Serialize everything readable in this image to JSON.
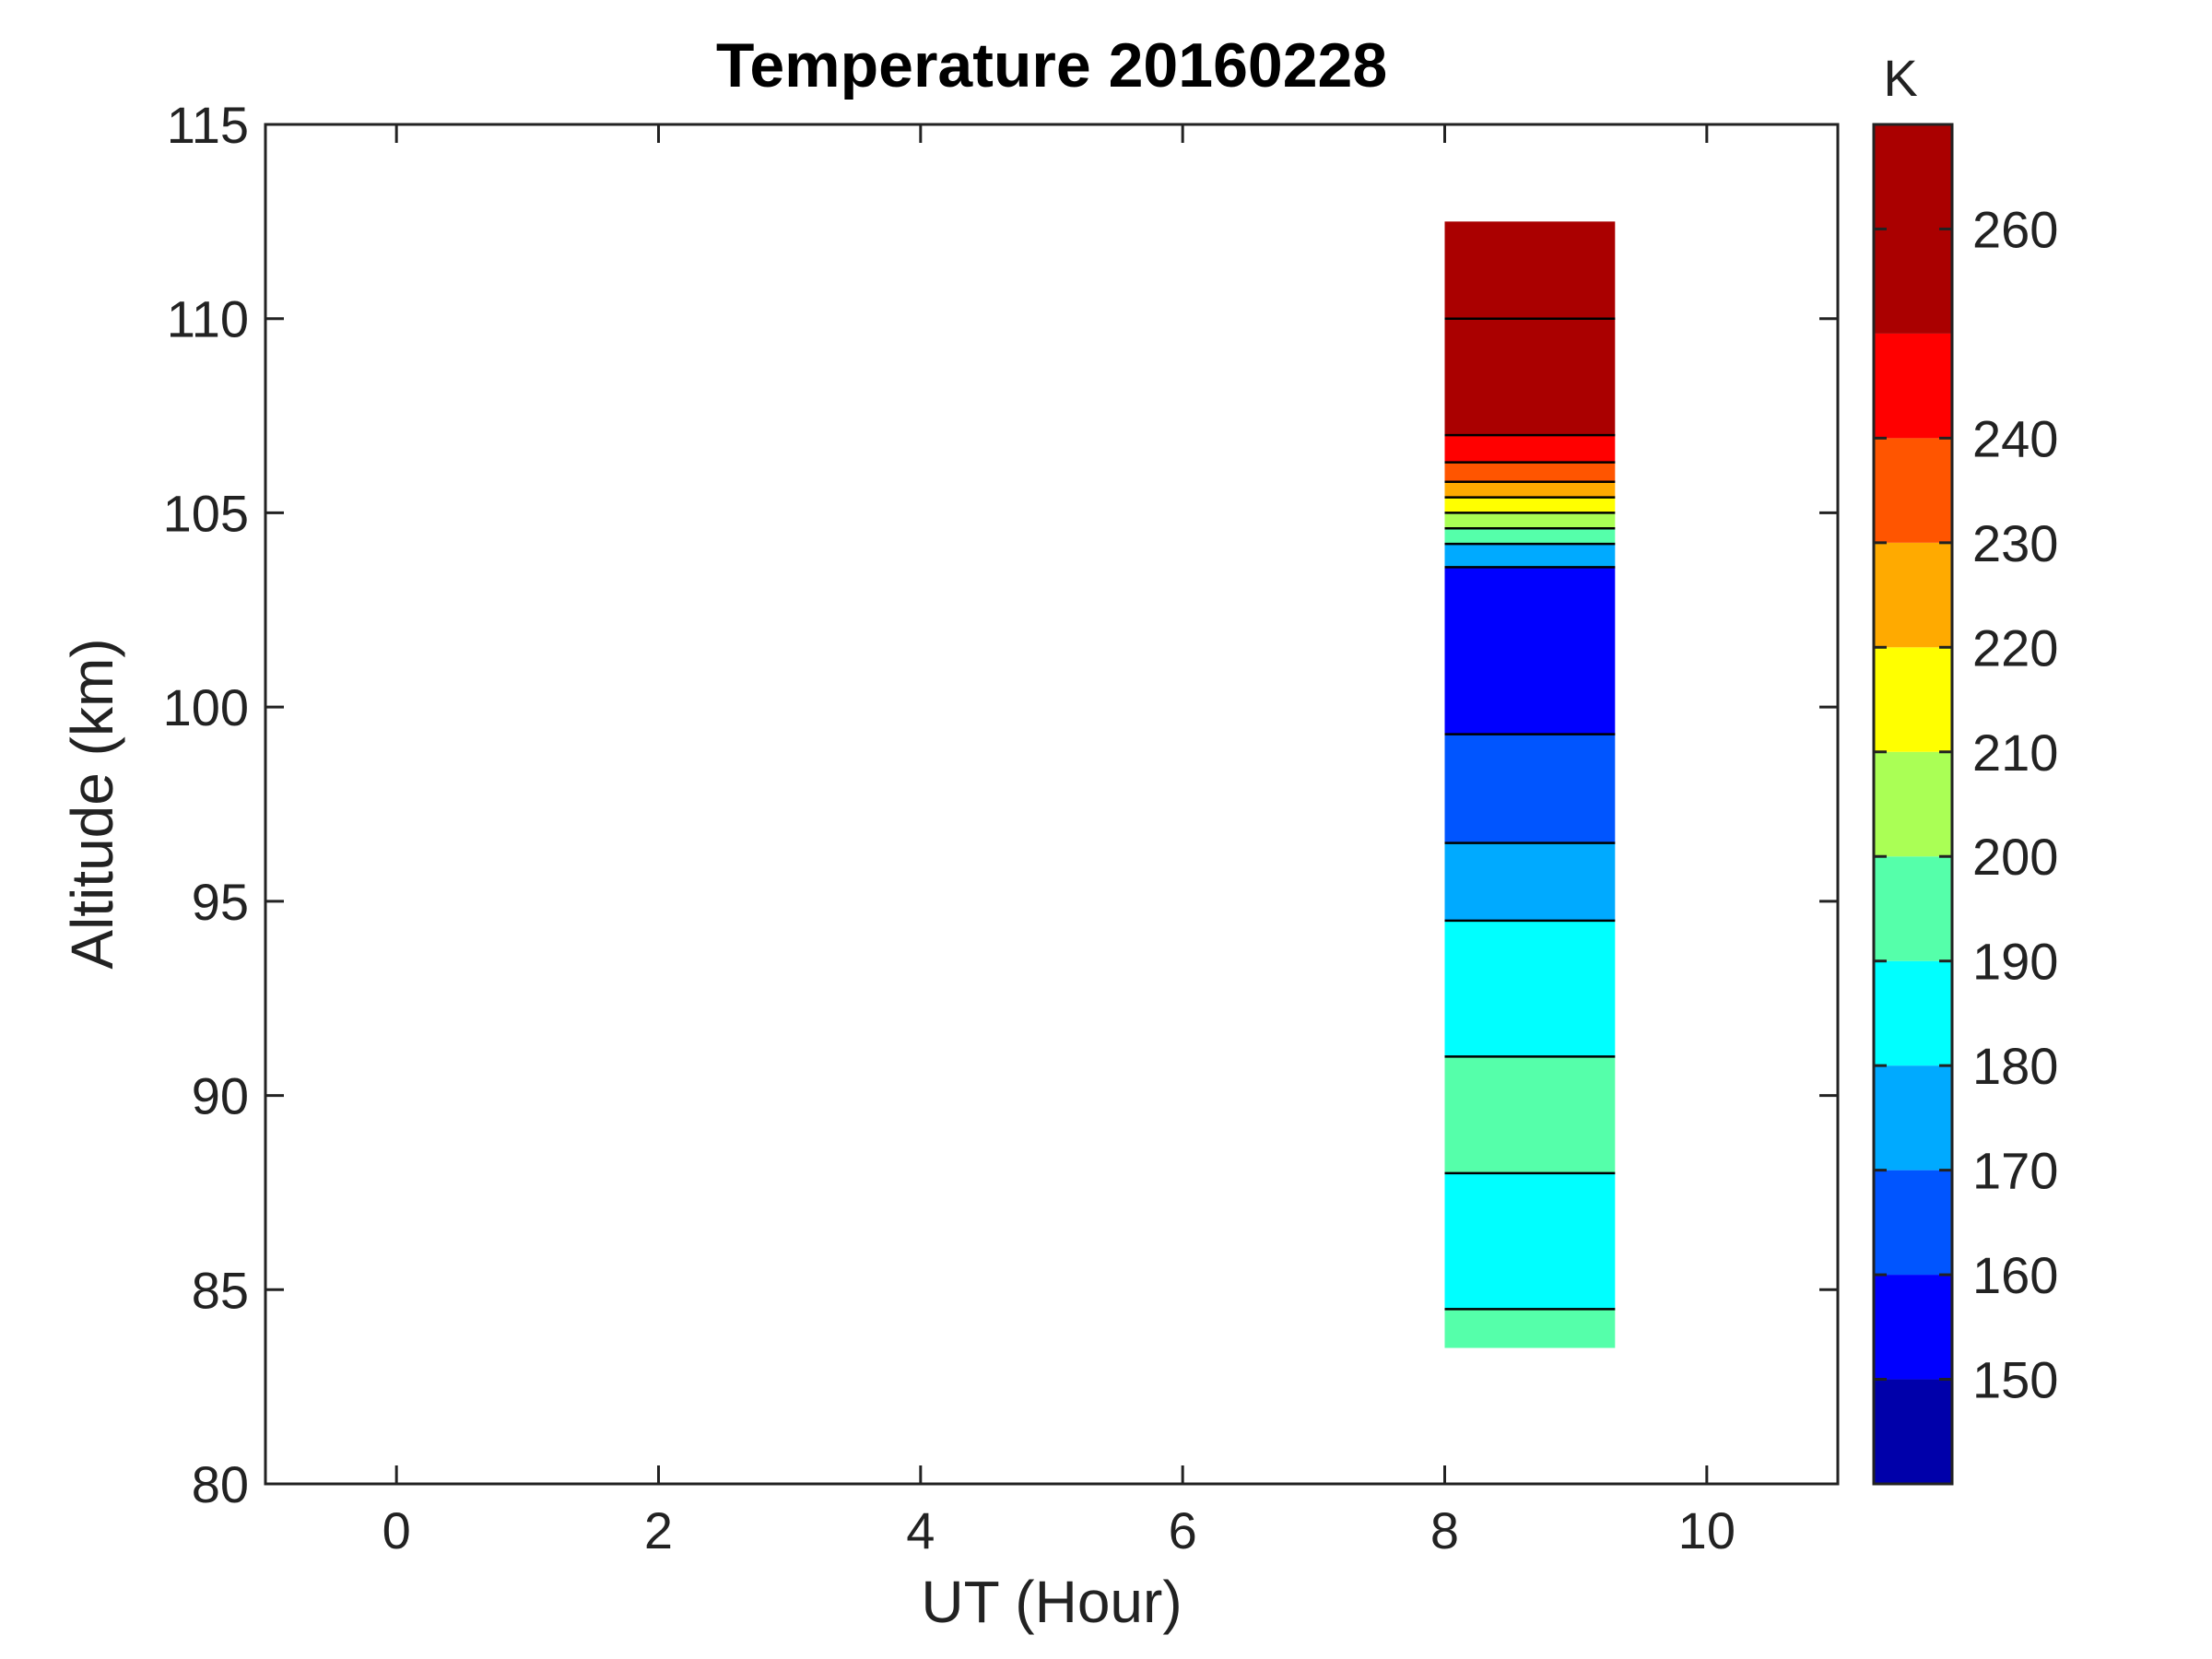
{
  "chart_data": {
    "type": "heatmap",
    "title": "Temperature 20160228",
    "xlabel": "UT (Hour)",
    "ylabel": "Altitude (km)",
    "xlim": [
      -1,
      11
    ],
    "ylim": [
      80,
      115
    ],
    "xticks": [
      "0",
      "2",
      "4",
      "6",
      "8",
      "10"
    ],
    "yticks": [
      "80",
      "85",
      "90",
      "95",
      "100",
      "105",
      "110",
      "115"
    ],
    "colorbar": {
      "unit": "K",
      "range": [
        140,
        270
      ],
      "ticks": [
        "150",
        "160",
        "170",
        "180",
        "190",
        "200",
        "210",
        "220",
        "230",
        "240",
        "260"
      ],
      "bands": [
        {
          "from": 140,
          "to": 150,
          "color": "#0000aa"
        },
        {
          "from": 150,
          "to": 160,
          "color": "#0000ff"
        },
        {
          "from": 160,
          "to": 170,
          "color": "#0055ff"
        },
        {
          "from": 170,
          "to": 180,
          "color": "#00aaff"
        },
        {
          "from": 180,
          "to": 190,
          "color": "#00ffff"
        },
        {
          "from": 190,
          "to": 200,
          "color": "#55ffaa"
        },
        {
          "from": 200,
          "to": 210,
          "color": "#aaff55"
        },
        {
          "from": 210,
          "to": 220,
          "color": "#ffff00"
        },
        {
          "from": 220,
          "to": 230,
          "color": "#ffaa00"
        },
        {
          "from": 230,
          "to": 240,
          "color": "#ff5500"
        },
        {
          "from": 240,
          "to": 250,
          "color": "#ff0000"
        },
        {
          "from": 250,
          "to": 270,
          "color": "#aa0000"
        }
      ]
    },
    "data_extent": {
      "x": [
        8.0,
        9.3
      ],
      "y": [
        83.5,
        112.5
      ]
    },
    "profiles": [
      {
        "from_altitude": 110.0,
        "to_altitude": 112.5,
        "temperature": 255
      },
      {
        "from_altitude": 107.0,
        "to_altitude": 110.0,
        "temperature": 260
      },
      {
        "from_altitude": 106.3,
        "to_altitude": 107.0,
        "temperature": 245
      },
      {
        "from_altitude": 105.8,
        "to_altitude": 106.3,
        "temperature": 235
      },
      {
        "from_altitude": 105.4,
        "to_altitude": 105.8,
        "temperature": 225
      },
      {
        "from_altitude": 105.0,
        "to_altitude": 105.4,
        "temperature": 215
      },
      {
        "from_altitude": 104.6,
        "to_altitude": 105.0,
        "temperature": 205
      },
      {
        "from_altitude": 104.2,
        "to_altitude": 104.6,
        "temperature": 195
      },
      {
        "from_altitude": 103.6,
        "to_altitude": 104.2,
        "temperature": 175
      },
      {
        "from_altitude": 99.3,
        "to_altitude": 103.6,
        "temperature": 155
      },
      {
        "from_altitude": 96.5,
        "to_altitude": 99.3,
        "temperature": 165
      },
      {
        "from_altitude": 94.5,
        "to_altitude": 96.5,
        "temperature": 175
      },
      {
        "from_altitude": 91.0,
        "to_altitude": 94.5,
        "temperature": 185
      },
      {
        "from_altitude": 88.0,
        "to_altitude": 91.0,
        "temperature": 192
      },
      {
        "from_altitude": 84.5,
        "to_altitude": 88.0,
        "temperature": 185
      },
      {
        "from_altitude": 83.5,
        "to_altitude": 84.5,
        "temperature": 192
      }
    ]
  }
}
